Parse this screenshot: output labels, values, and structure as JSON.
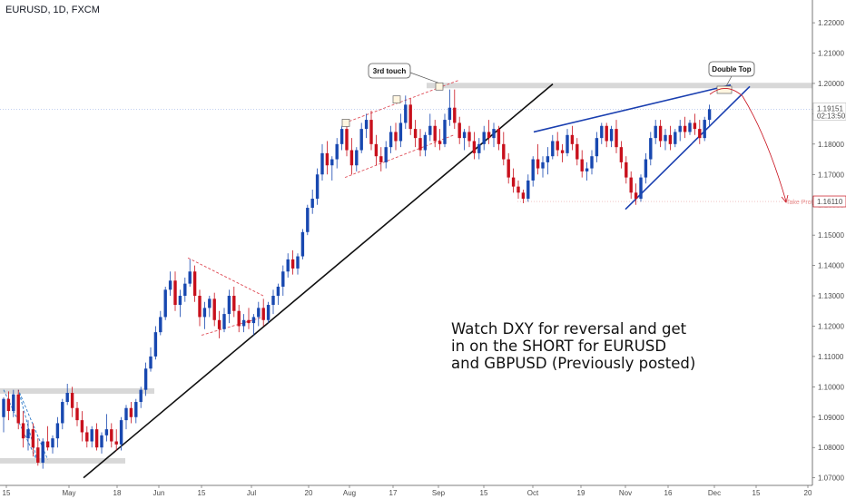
{
  "symbol": "EURUSD, 1D, FXCM",
  "note_lines": [
    "Watch DXY for reversal and get",
    "in on the SHORT for EURUSD",
    "and GBPUSD (Previously posted)"
  ],
  "annotations": {
    "third_touch": "3rd touch",
    "double_top": "Double Top",
    "take_profit": "Take Profit"
  },
  "price_labels": {
    "last_price": "1.19151",
    "countdown": "02:13:50",
    "target": "1.16110"
  },
  "colors": {
    "up": "#1848b0",
    "down": "#c8101c",
    "trend": "#111111",
    "wedge": "#1a3fb0",
    "channel": "#e0505a",
    "target_line": "#e8a0a0",
    "zone": "#d8d8d8"
  },
  "chart_data": {
    "type": "candlestick",
    "title": "EURUSD, 1D, FXCM",
    "ylim": [
      1.0675,
      1.2275
    ],
    "y_ticks": [
      "1.07000",
      "1.08000",
      "1.09000",
      "1.10000",
      "1.11000",
      "1.12000",
      "1.13000",
      "1.14000",
      "1.15000",
      "1.16000",
      "1.17000",
      "1.18000",
      "1.19000",
      "1.20000",
      "1.21000",
      "1.22000"
    ],
    "x_ticks": [
      "15",
      "May",
      "18",
      "Jun",
      "15",
      "Jul",
      "20",
      "Aug",
      "17",
      "Sep",
      "15",
      "Oct",
      "19",
      "Nov",
      "16",
      "Dec",
      "15",
      "20"
    ],
    "key_levels": {
      "resistance": 1.1995,
      "target": 1.1611,
      "last_price": 1.19151
    },
    "candles": [
      [
        1.09,
        1.0965,
        1.085,
        1.096
      ],
      [
        1.096,
        1.0985,
        1.089,
        1.092
      ],
      [
        1.092,
        1.099,
        1.09,
        1.0975
      ],
      [
        1.0975,
        1.099,
        1.086,
        1.088
      ],
      [
        1.088,
        1.092,
        1.08,
        1.083
      ],
      [
        1.083,
        1.089,
        1.079,
        1.086
      ],
      [
        1.086,
        1.088,
        1.077,
        1.08
      ],
      [
        1.08,
        1.083,
        1.074,
        1.075
      ],
      [
        1.075,
        1.083,
        1.073,
        1.082
      ],
      [
        1.082,
        1.087,
        1.079,
        1.08
      ],
      [
        1.08,
        1.084,
        1.078,
        1.083
      ],
      [
        1.083,
        1.09,
        1.08,
        1.088
      ],
      [
        1.088,
        1.096,
        1.086,
        1.095
      ],
      [
        1.095,
        1.101,
        1.094,
        1.098
      ],
      [
        1.098,
        1.1,
        1.09,
        1.093
      ],
      [
        1.093,
        1.095,
        1.087,
        1.089
      ],
      [
        1.089,
        1.092,
        1.082,
        1.085
      ],
      [
        1.085,
        1.087,
        1.08,
        1.082
      ],
      [
        1.082,
        1.087,
        1.08,
        1.086
      ],
      [
        1.086,
        1.088,
        1.079,
        1.08
      ],
      [
        1.08,
        1.085,
        1.078,
        1.084
      ],
      [
        1.084,
        1.091,
        1.082,
        1.086
      ],
      [
        1.086,
        1.088,
        1.08,
        1.082
      ],
      [
        1.082,
        1.086,
        1.079,
        1.081
      ],
      [
        1.081,
        1.09,
        1.079,
        1.089
      ],
      [
        1.089,
        1.094,
        1.086,
        1.093
      ],
      [
        1.093,
        1.095,
        1.088,
        1.09
      ],
      [
        1.09,
        1.096,
        1.088,
        1.095
      ],
      [
        1.095,
        1.1,
        1.093,
        1.099
      ],
      [
        1.099,
        1.108,
        1.097,
        1.106
      ],
      [
        1.106,
        1.113,
        1.105,
        1.11
      ],
      [
        1.11,
        1.12,
        1.109,
        1.118
      ],
      [
        1.118,
        1.125,
        1.117,
        1.123
      ],
      [
        1.123,
        1.133,
        1.122,
        1.132
      ],
      [
        1.132,
        1.138,
        1.13,
        1.135
      ],
      [
        1.135,
        1.138,
        1.125,
        1.127
      ],
      [
        1.127,
        1.132,
        1.123,
        1.13
      ],
      [
        1.13,
        1.136,
        1.128,
        1.134
      ],
      [
        1.134,
        1.142,
        1.133,
        1.138
      ],
      [
        1.138,
        1.14,
        1.128,
        1.13
      ],
      [
        1.13,
        1.132,
        1.12,
        1.123
      ],
      [
        1.123,
        1.128,
        1.119,
        1.126
      ],
      [
        1.126,
        1.13,
        1.123,
        1.129
      ],
      [
        1.129,
        1.131,
        1.12,
        1.122
      ],
      [
        1.122,
        1.125,
        1.116,
        1.119
      ],
      [
        1.119,
        1.126,
        1.118,
        1.124
      ],
      [
        1.124,
        1.132,
        1.121,
        1.13
      ],
      [
        1.13,
        1.133,
        1.123,
        1.125
      ],
      [
        1.125,
        1.127,
        1.118,
        1.12
      ],
      [
        1.12,
        1.124,
        1.118,
        1.122
      ],
      [
        1.122,
        1.126,
        1.119,
        1.121
      ],
      [
        1.121,
        1.124,
        1.117,
        1.123
      ],
      [
        1.123,
        1.128,
        1.12,
        1.126
      ],
      [
        1.126,
        1.129,
        1.12,
        1.122
      ],
      [
        1.122,
        1.128,
        1.121,
        1.127
      ],
      [
        1.127,
        1.132,
        1.124,
        1.13
      ],
      [
        1.13,
        1.134,
        1.127,
        1.133
      ],
      [
        1.133,
        1.14,
        1.13,
        1.138
      ],
      [
        1.138,
        1.144,
        1.136,
        1.142
      ],
      [
        1.142,
        1.145,
        1.137,
        1.139
      ],
      [
        1.139,
        1.144,
        1.137,
        1.143
      ],
      [
        1.143,
        1.152,
        1.142,
        1.151
      ],
      [
        1.151,
        1.16,
        1.15,
        1.159
      ],
      [
        1.159,
        1.165,
        1.157,
        1.162
      ],
      [
        1.162,
        1.172,
        1.16,
        1.17
      ],
      [
        1.17,
        1.18,
        1.168,
        1.177
      ],
      [
        1.177,
        1.181,
        1.17,
        1.173
      ],
      [
        1.173,
        1.176,
        1.168,
        1.175
      ],
      [
        1.175,
        1.182,
        1.172,
        1.18
      ],
      [
        1.18,
        1.186,
        1.178,
        1.185
      ],
      [
        1.185,
        1.188,
        1.176,
        1.178
      ],
      [
        1.178,
        1.182,
        1.17,
        1.173
      ],
      [
        1.173,
        1.179,
        1.171,
        1.178
      ],
      [
        1.178,
        1.187,
        1.177,
        1.185
      ],
      [
        1.185,
        1.19,
        1.182,
        1.188
      ],
      [
        1.188,
        1.191,
        1.178,
        1.18
      ],
      [
        1.18,
        1.183,
        1.173,
        1.176
      ],
      [
        1.176,
        1.179,
        1.171,
        1.174
      ],
      [
        1.174,
        1.181,
        1.172,
        1.179
      ],
      [
        1.179,
        1.186,
        1.177,
        1.184
      ],
      [
        1.184,
        1.187,
        1.178,
        1.181
      ],
      [
        1.181,
        1.19,
        1.179,
        1.187
      ],
      [
        1.187,
        1.196,
        1.185,
        1.193
      ],
      [
        1.193,
        1.195,
        1.183,
        1.185
      ],
      [
        1.185,
        1.188,
        1.179,
        1.182
      ],
      [
        1.182,
        1.185,
        1.176,
        1.178
      ],
      [
        1.178,
        1.184,
        1.176,
        1.183
      ],
      [
        1.183,
        1.19,
        1.181,
        1.186
      ],
      [
        1.186,
        1.188,
        1.179,
        1.181
      ],
      [
        1.181,
        1.185,
        1.178,
        1.18
      ],
      [
        1.18,
        1.19,
        1.179,
        1.188
      ],
      [
        1.188,
        1.198,
        1.186,
        1.192
      ],
      [
        1.192,
        1.198,
        1.185,
        1.187
      ],
      [
        1.187,
        1.189,
        1.18,
        1.182
      ],
      [
        1.182,
        1.185,
        1.178,
        1.184
      ],
      [
        1.184,
        1.186,
        1.179,
        1.181
      ],
      [
        1.181,
        1.184,
        1.175,
        1.177
      ],
      [
        1.177,
        1.182,
        1.175,
        1.18
      ],
      [
        1.18,
        1.186,
        1.178,
        1.184
      ],
      [
        1.184,
        1.188,
        1.18,
        1.182
      ],
      [
        1.182,
        1.187,
        1.179,
        1.185
      ],
      [
        1.185,
        1.186,
        1.178,
        1.18
      ],
      [
        1.18,
        1.184,
        1.173,
        1.175
      ],
      [
        1.175,
        1.177,
        1.167,
        1.169
      ],
      [
        1.169,
        1.172,
        1.164,
        1.166
      ],
      [
        1.166,
        1.168,
        1.162,
        1.164
      ],
      [
        1.164,
        1.165,
        1.1605,
        1.162
      ],
      [
        1.162,
        1.17,
        1.161,
        1.168
      ],
      [
        1.168,
        1.176,
        1.166,
        1.175
      ],
      [
        1.175,
        1.18,
        1.17,
        1.172
      ],
      [
        1.172,
        1.176,
        1.169,
        1.174
      ],
      [
        1.174,
        1.179,
        1.17,
        1.176
      ],
      [
        1.176,
        1.183,
        1.175,
        1.181
      ],
      [
        1.181,
        1.184,
        1.176,
        1.178
      ],
      [
        1.178,
        1.18,
        1.174,
        1.177
      ],
      [
        1.177,
        1.185,
        1.176,
        1.183
      ],
      [
        1.183,
        1.186,
        1.178,
        1.18
      ],
      [
        1.18,
        1.182,
        1.173,
        1.175
      ],
      [
        1.175,
        1.178,
        1.169,
        1.171
      ],
      [
        1.171,
        1.174,
        1.168,
        1.172
      ],
      [
        1.172,
        1.178,
        1.17,
        1.176
      ],
      [
        1.176,
        1.184,
        1.174,
        1.182
      ],
      [
        1.182,
        1.187,
        1.18,
        1.186
      ],
      [
        1.186,
        1.187,
        1.179,
        1.181
      ],
      [
        1.181,
        1.186,
        1.179,
        1.185
      ],
      [
        1.185,
        1.188,
        1.177,
        1.179
      ],
      [
        1.179,
        1.181,
        1.172,
        1.174
      ],
      [
        1.174,
        1.176,
        1.167,
        1.169
      ],
      [
        1.169,
        1.171,
        1.162,
        1.164
      ],
      [
        1.164,
        1.167,
        1.16,
        1.162
      ],
      [
        1.162,
        1.17,
        1.161,
        1.169
      ],
      [
        1.169,
        1.177,
        1.167,
        1.175
      ],
      [
        1.175,
        1.184,
        1.173,
        1.182
      ],
      [
        1.182,
        1.188,
        1.18,
        1.186
      ],
      [
        1.186,
        1.188,
        1.179,
        1.181
      ],
      [
        1.181,
        1.185,
        1.178,
        1.183
      ],
      [
        1.183,
        1.186,
        1.178,
        1.18
      ],
      [
        1.18,
        1.185,
        1.179,
        1.184
      ],
      [
        1.184,
        1.188,
        1.181,
        1.186
      ],
      [
        1.186,
        1.189,
        1.182,
        1.184
      ],
      [
        1.184,
        1.188,
        1.183,
        1.187
      ],
      [
        1.187,
        1.19,
        1.183,
        1.185
      ],
      [
        1.185,
        1.188,
        1.18,
        1.182
      ],
      [
        1.182,
        1.189,
        1.181,
        1.188
      ],
      [
        1.188,
        1.193,
        1.186,
        1.1915
      ]
    ]
  }
}
